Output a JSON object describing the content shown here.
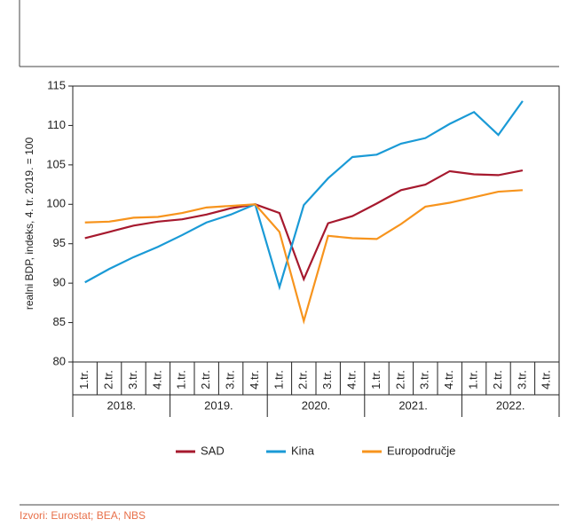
{
  "chart_data": {
    "type": "line",
    "y_label": "realni BDP, indeks, 4. tr. 2019. = 100",
    "source": "Izvori: Eurostat; BEA; NBS",
    "categories": [
      "1.tr.",
      "2.tr.",
      "3.tr.",
      "4.tr.",
      "1.tr.",
      "2.tr.",
      "3.tr.",
      "4.tr.",
      "1.tr.",
      "2.tr.",
      "3.tr.",
      "4.tr.",
      "1.tr.",
      "2.tr.",
      "3.tr.",
      "4.tr.",
      "1.tr.",
      "2.tr.",
      "3.tr.",
      "4.tr."
    ],
    "groups": [
      "2018.",
      "2019.",
      "2020.",
      "2021.",
      "2022."
    ],
    "series": [
      {
        "name": "SAD",
        "color": "#a6192e",
        "values": [
          95.7,
          96.5,
          97.3,
          97.8,
          98.1,
          98.7,
          99.5,
          100,
          98.9,
          90.5,
          97.6,
          98.5,
          100.1,
          101.8,
          102.5,
          104.2,
          103.8,
          103.7,
          104.3,
          null
        ]
      },
      {
        "name": "Kina",
        "color": "#1a9ad6",
        "values": [
          90.1,
          91.8,
          93.3,
          94.6,
          96.1,
          97.7,
          98.7,
          100,
          89.5,
          99.9,
          103.3,
          106,
          106.3,
          107.7,
          108.4,
          110.2,
          111.7,
          108.8,
          113.1,
          null
        ]
      },
      {
        "name": "Europodručje",
        "color": "#f7941d",
        "values": [
          97.7,
          97.8,
          98.3,
          98.4,
          98.9,
          99.6,
          99.8,
          100,
          96.5,
          85.2,
          96.0,
          95.7,
          95.6,
          97.5,
          99.7,
          100.2,
          100.9,
          101.6,
          101.8,
          null
        ]
      }
    ],
    "ylim": [
      80,
      115
    ],
    "yticks": [
      80,
      85,
      90,
      95,
      100,
      105,
      110,
      115
    ],
    "grid": false
  }
}
